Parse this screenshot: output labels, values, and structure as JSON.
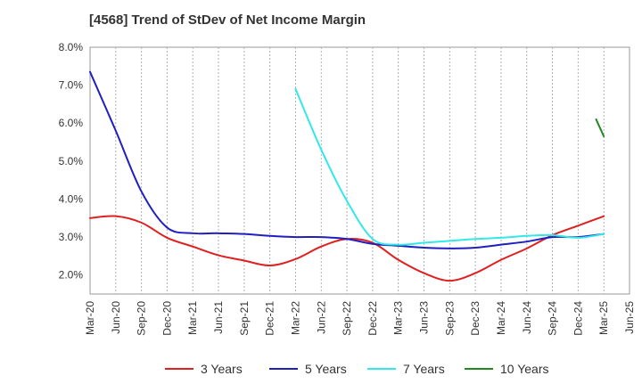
{
  "chart_data": {
    "type": "line",
    "title": "[4568]  Trend of StDev of Net Income Margin",
    "xlabel": "",
    "ylabel": "",
    "categories": [
      "Mar-20",
      "Jun-20",
      "Sep-20",
      "Dec-20",
      "Mar-21",
      "Jun-21",
      "Sep-21",
      "Dec-21",
      "Mar-22",
      "Jun-22",
      "Sep-22",
      "Dec-22",
      "Mar-23",
      "Jun-23",
      "Sep-23",
      "Dec-23",
      "Mar-24",
      "Jun-24",
      "Sep-24",
      "Dec-24",
      "Mar-25",
      "Jun-25"
    ],
    "y_ticks": [
      "8.0%",
      "7.0%",
      "6.0%",
      "5.0%",
      "4.0%",
      "3.0%",
      "2.0%"
    ],
    "ylim": [
      1.5,
      8.0
    ],
    "grid": "vertical dashed gridlines",
    "legend_position": "bottom",
    "series": [
      {
        "name": "3 Years",
        "color": "#e02020",
        "values": [
          3.5,
          3.55,
          3.38,
          2.98,
          2.75,
          2.52,
          2.38,
          2.25,
          2.42,
          2.75,
          2.95,
          2.85,
          2.4,
          2.05,
          1.85,
          2.05,
          2.4,
          2.7,
          3.05,
          3.3,
          3.55,
          null
        ]
      },
      {
        "name": "5 Years",
        "color": "#1f1fbf",
        "values": [
          7.35,
          5.8,
          4.2,
          3.25,
          3.1,
          3.1,
          3.08,
          3.03,
          3.0,
          3.0,
          2.95,
          2.82,
          2.77,
          2.72,
          2.7,
          2.72,
          2.8,
          2.88,
          3.0,
          3.0,
          3.08,
          null
        ]
      },
      {
        "name": "7 Years",
        "color": "#33e8e8",
        "values": [
          null,
          null,
          null,
          null,
          null,
          null,
          null,
          null,
          6.9,
          5.3,
          3.95,
          2.95,
          2.8,
          2.85,
          2.9,
          2.95,
          2.98,
          3.03,
          3.05,
          2.98,
          3.08,
          null
        ]
      },
      {
        "name": "10 Years",
        "color": "#208a20",
        "values": [
          null,
          null,
          null,
          null,
          null,
          null,
          null,
          null,
          null,
          null,
          null,
          null,
          null,
          null,
          null,
          null,
          null,
          null,
          null,
          null,
          5.65,
          null
        ],
        "start": {
          "category": "Dec-24",
          "offset": 0.7,
          "value": 6.1
        }
      }
    ]
  }
}
